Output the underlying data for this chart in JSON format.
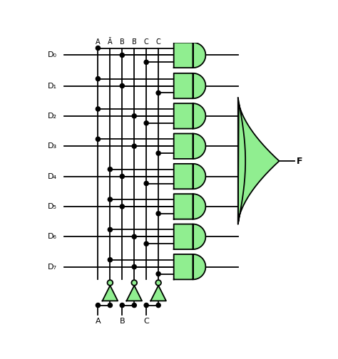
{
  "bg_color": "#ffffff",
  "line_color": "#000000",
  "gate_fill": "#90ee90",
  "gate_edge": "#000000",
  "dot_color": "#000000",
  "fig_width": 4.74,
  "fig_height": 5.04,
  "dpi": 100,
  "inputs": [
    "D₀",
    "D₁",
    "D₂",
    "D₃",
    "D₄",
    "D₅",
    "D₆",
    "D₇"
  ],
  "output_label": "F"
}
